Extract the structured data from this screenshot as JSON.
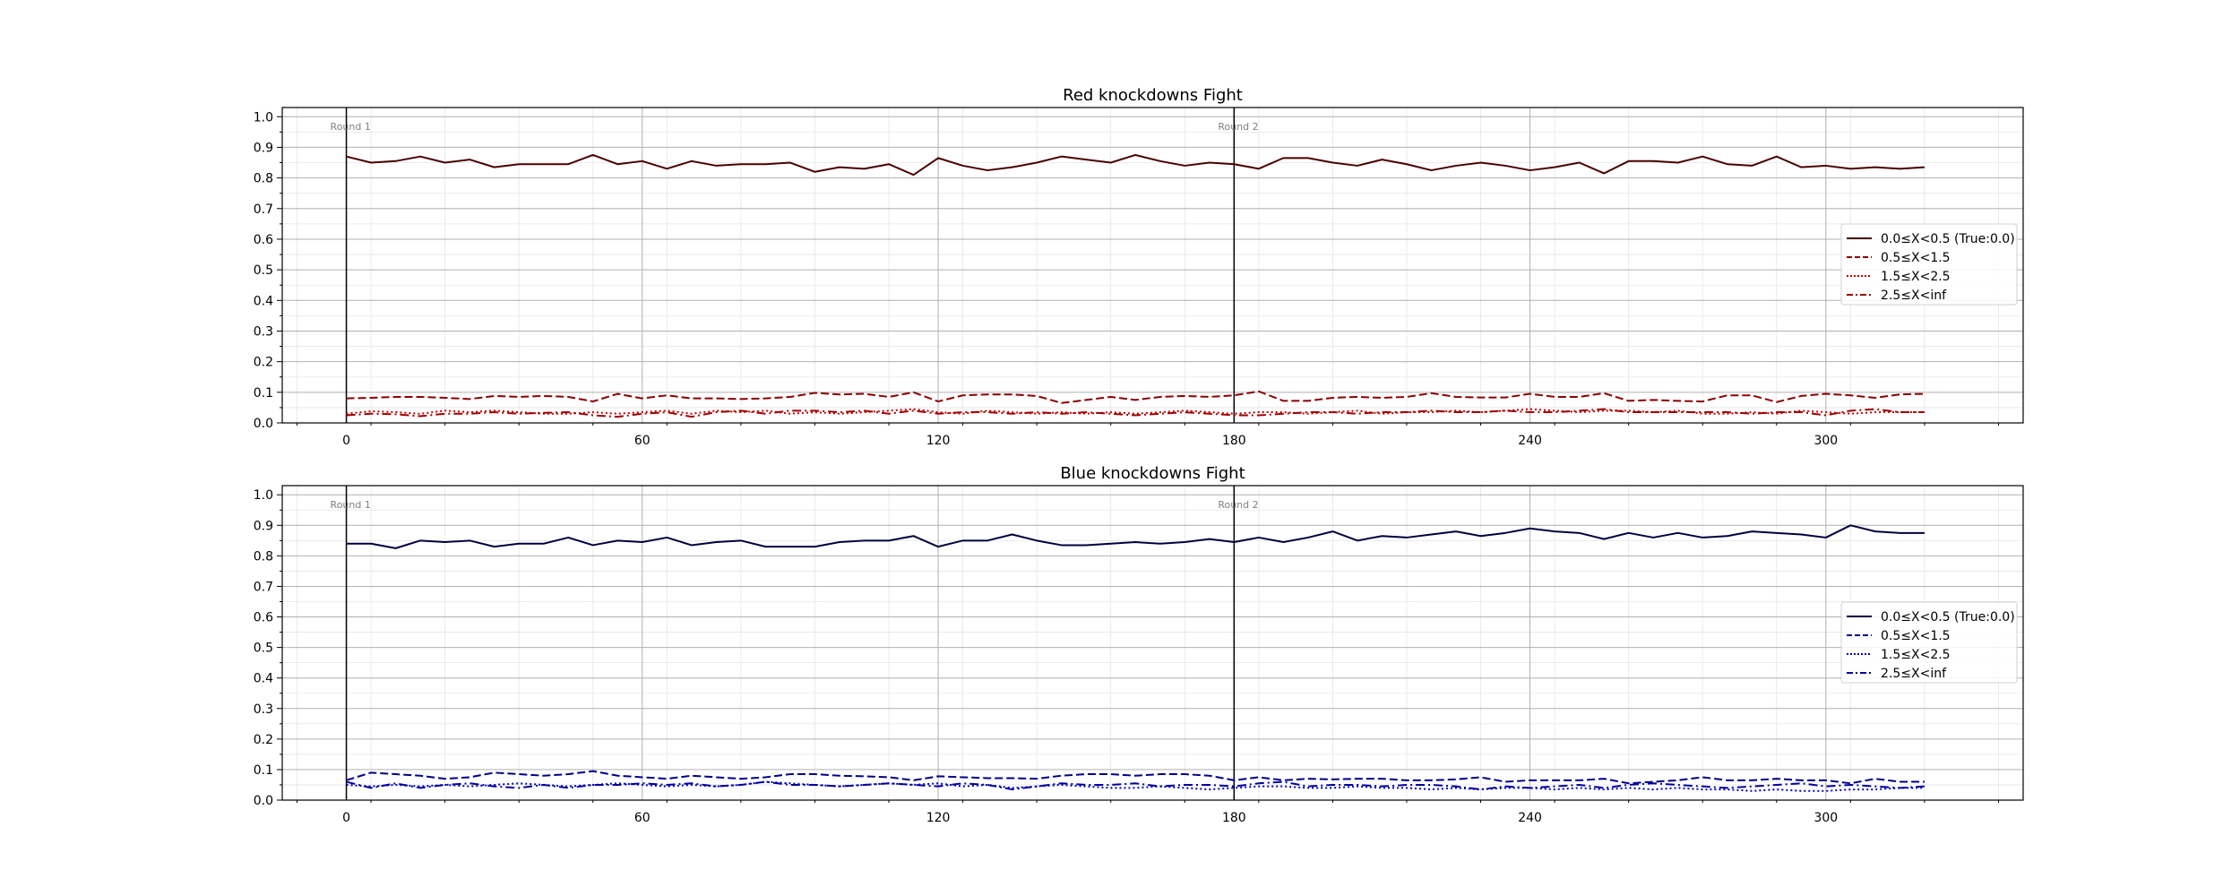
{
  "chart_data": [
    {
      "type": "line",
      "title": "Red knockdowns Fight",
      "xlabel": "",
      "ylabel": "",
      "xlim": [
        -13,
        340
      ],
      "ylim": [
        0.0,
        1.03
      ],
      "xticks": [
        0,
        60,
        120,
        180,
        240,
        300
      ],
      "yticks": [
        0.0,
        0.1,
        0.2,
        0.3,
        0.4,
        0.5,
        0.6,
        0.7,
        0.8,
        0.9,
        1.0
      ],
      "grid": "major and minor",
      "legend_position": "center-right",
      "round_markers": [
        {
          "x": 0,
          "label": "Round 1"
        },
        {
          "x": 180,
          "label": "Round 2"
        }
      ],
      "x": [
        0,
        5,
        10,
        15,
        20,
        25,
        30,
        35,
        40,
        45,
        50,
        55,
        60,
        65,
        70,
        75,
        80,
        85,
        90,
        95,
        100,
        105,
        110,
        115,
        120,
        125,
        130,
        135,
        140,
        145,
        150,
        155,
        160,
        165,
        170,
        175,
        180,
        185,
        190,
        195,
        200,
        205,
        210,
        215,
        220,
        225,
        230,
        235,
        240,
        245,
        250,
        255,
        260,
        265,
        270,
        275,
        280,
        285,
        290,
        295,
        300,
        305,
        310,
        315,
        320
      ],
      "series": [
        {
          "name": "0.0≤X<0.5 (True:0.0)",
          "color": "#4a0000",
          "dash": "solid",
          "values": [
            0.87,
            0.85,
            0.855,
            0.87,
            0.85,
            0.86,
            0.835,
            0.845,
            0.845,
            0.845,
            0.875,
            0.845,
            0.855,
            0.83,
            0.855,
            0.84,
            0.845,
            0.845,
            0.85,
            0.82,
            0.835,
            0.83,
            0.845,
            0.81,
            0.865,
            0.84,
            0.825,
            0.835,
            0.85,
            0.87,
            0.86,
            0.85,
            0.875,
            0.855,
            0.84,
            0.85,
            0.845,
            0.83,
            0.865,
            0.865,
            0.85,
            0.84,
            0.86,
            0.845,
            0.825,
            0.84,
            0.85,
            0.84,
            0.825,
            0.835,
            0.85,
            0.815,
            0.855,
            0.855,
            0.85,
            0.87,
            0.845,
            0.84,
            0.87,
            0.835,
            0.84,
            0.83,
            0.835,
            0.83,
            0.835
          ]
        },
        {
          "name": "0.5≤X<1.5",
          "color": "#8b0000",
          "dash": "dashed",
          "values": [
            0.08,
            0.082,
            0.085,
            0.085,
            0.082,
            0.078,
            0.088,
            0.085,
            0.088,
            0.085,
            0.07,
            0.095,
            0.08,
            0.09,
            0.08,
            0.08,
            0.078,
            0.08,
            0.085,
            0.098,
            0.093,
            0.095,
            0.085,
            0.1,
            0.07,
            0.09,
            0.093,
            0.093,
            0.088,
            0.065,
            0.075,
            0.085,
            0.075,
            0.085,
            0.088,
            0.085,
            0.09,
            0.103,
            0.072,
            0.072,
            0.082,
            0.085,
            0.082,
            0.085,
            0.097,
            0.085,
            0.083,
            0.083,
            0.095,
            0.085,
            0.085,
            0.097,
            0.072,
            0.075,
            0.072,
            0.07,
            0.09,
            0.09,
            0.068,
            0.088,
            0.095,
            0.09,
            0.082,
            0.093,
            0.095
          ]
        },
        {
          "name": "1.5≤X<2.5",
          "color": "#c00000",
          "dash": "dotted",
          "values": [
            0.03,
            0.038,
            0.035,
            0.03,
            0.04,
            0.035,
            0.04,
            0.035,
            0.03,
            0.03,
            0.035,
            0.03,
            0.035,
            0.04,
            0.03,
            0.04,
            0.035,
            0.04,
            0.03,
            0.035,
            0.03,
            0.035,
            0.04,
            0.045,
            0.035,
            0.03,
            0.04,
            0.035,
            0.03,
            0.035,
            0.03,
            0.035,
            0.03,
            0.035,
            0.04,
            0.035,
            0.03,
            0.035,
            0.035,
            0.03,
            0.035,
            0.04,
            0.03,
            0.035,
            0.035,
            0.04,
            0.035,
            0.04,
            0.045,
            0.04,
            0.035,
            0.04,
            0.04,
            0.035,
            0.04,
            0.03,
            0.03,
            0.035,
            0.03,
            0.04,
            0.035,
            0.03,
            0.035,
            0.035,
            0.035
          ]
        },
        {
          "name": "2.5≤X<inf",
          "color": "#a00000",
          "dash": "dashdot",
          "values": [
            0.025,
            0.03,
            0.028,
            0.022,
            0.03,
            0.03,
            0.035,
            0.03,
            0.033,
            0.035,
            0.025,
            0.02,
            0.03,
            0.035,
            0.02,
            0.035,
            0.04,
            0.03,
            0.04,
            0.04,
            0.035,
            0.04,
            0.03,
            0.04,
            0.03,
            0.035,
            0.035,
            0.03,
            0.035,
            0.03,
            0.035,
            0.03,
            0.025,
            0.03,
            0.035,
            0.03,
            0.025,
            0.025,
            0.03,
            0.035,
            0.035,
            0.03,
            0.035,
            0.035,
            0.04,
            0.035,
            0.035,
            0.04,
            0.035,
            0.035,
            0.04,
            0.045,
            0.035,
            0.035,
            0.035,
            0.035,
            0.035,
            0.03,
            0.035,
            0.035,
            0.025,
            0.04,
            0.045,
            0.035,
            0.035
          ]
        }
      ]
    },
    {
      "type": "line",
      "title": "Blue knockdowns Fight",
      "xlabel": "",
      "ylabel": "",
      "xlim": [
        -13,
        340
      ],
      "ylim": [
        0.0,
        1.03
      ],
      "xticks": [
        0,
        60,
        120,
        180,
        240,
        300
      ],
      "yticks": [
        0.0,
        0.1,
        0.2,
        0.3,
        0.4,
        0.5,
        0.6,
        0.7,
        0.8,
        0.9,
        1.0
      ],
      "grid": "major and minor",
      "legend_position": "center-right",
      "round_markers": [
        {
          "x": 0,
          "label": "Round 1"
        },
        {
          "x": 180,
          "label": "Round 2"
        }
      ],
      "x": [
        0,
        5,
        10,
        15,
        20,
        25,
        30,
        35,
        40,
        45,
        50,
        55,
        60,
        65,
        70,
        75,
        80,
        85,
        90,
        95,
        100,
        105,
        110,
        115,
        120,
        125,
        130,
        135,
        140,
        145,
        150,
        155,
        160,
        165,
        170,
        175,
        180,
        185,
        190,
        195,
        200,
        205,
        210,
        215,
        220,
        225,
        230,
        235,
        240,
        245,
        250,
        255,
        260,
        265,
        270,
        275,
        280,
        285,
        290,
        295,
        300,
        305,
        310,
        315,
        320
      ],
      "series": [
        {
          "name": "0.0≤X<0.5 (True:0.0)",
          "color": "#000040",
          "dash": "solid",
          "values": [
            0.84,
            0.84,
            0.825,
            0.85,
            0.845,
            0.85,
            0.83,
            0.84,
            0.84,
            0.86,
            0.835,
            0.85,
            0.845,
            0.86,
            0.835,
            0.845,
            0.85,
            0.83,
            0.83,
            0.83,
            0.845,
            0.85,
            0.85,
            0.865,
            0.83,
            0.85,
            0.85,
            0.87,
            0.85,
            0.835,
            0.835,
            0.84,
            0.845,
            0.84,
            0.845,
            0.855,
            0.845,
            0.86,
            0.845,
            0.86,
            0.88,
            0.85,
            0.865,
            0.86,
            0.87,
            0.88,
            0.865,
            0.875,
            0.89,
            0.88,
            0.875,
            0.855,
            0.875,
            0.86,
            0.875,
            0.86,
            0.865,
            0.88,
            0.875,
            0.87,
            0.86,
            0.9,
            0.88,
            0.875,
            0.875
          ]
        },
        {
          "name": "0.5≤X<1.5",
          "color": "#00008b",
          "dash": "dashed",
          "values": [
            0.065,
            0.09,
            0.085,
            0.08,
            0.07,
            0.075,
            0.09,
            0.085,
            0.08,
            0.085,
            0.095,
            0.08,
            0.075,
            0.07,
            0.08,
            0.075,
            0.07,
            0.075,
            0.085,
            0.085,
            0.08,
            0.078,
            0.075,
            0.065,
            0.078,
            0.075,
            0.072,
            0.072,
            0.07,
            0.08,
            0.085,
            0.085,
            0.08,
            0.085,
            0.085,
            0.08,
            0.065,
            0.075,
            0.065,
            0.07,
            0.068,
            0.07,
            0.07,
            0.065,
            0.065,
            0.068,
            0.075,
            0.06,
            0.065,
            0.065,
            0.065,
            0.07,
            0.055,
            0.06,
            0.065,
            0.075,
            0.065,
            0.065,
            0.07,
            0.065,
            0.065,
            0.055,
            0.07,
            0.06,
            0.06
          ]
        },
        {
          "name": "1.5≤X<2.5",
          "color": "#0000c0",
          "dash": "dotted",
          "values": [
            0.05,
            0.045,
            0.05,
            0.045,
            0.05,
            0.045,
            0.05,
            0.055,
            0.05,
            0.045,
            0.05,
            0.055,
            0.05,
            0.045,
            0.05,
            0.045,
            0.05,
            0.06,
            0.055,
            0.05,
            0.045,
            0.05,
            0.055,
            0.05,
            0.055,
            0.045,
            0.05,
            0.04,
            0.045,
            0.05,
            0.045,
            0.04,
            0.04,
            0.045,
            0.04,
            0.035,
            0.04,
            0.045,
            0.045,
            0.04,
            0.04,
            0.045,
            0.04,
            0.04,
            0.035,
            0.04,
            0.035,
            0.04,
            0.04,
            0.035,
            0.04,
            0.035,
            0.04,
            0.035,
            0.04,
            0.035,
            0.035,
            0.03,
            0.035,
            0.03,
            0.03,
            0.035,
            0.035,
            0.04,
            0.04
          ]
        },
        {
          "name": "2.5≤X<inf",
          "color": "#0000a0",
          "dash": "dashdot",
          "values": [
            0.06,
            0.04,
            0.055,
            0.04,
            0.05,
            0.055,
            0.045,
            0.04,
            0.05,
            0.04,
            0.05,
            0.05,
            0.055,
            0.05,
            0.055,
            0.045,
            0.05,
            0.06,
            0.05,
            0.05,
            0.045,
            0.05,
            0.055,
            0.05,
            0.045,
            0.055,
            0.05,
            0.035,
            0.045,
            0.055,
            0.05,
            0.05,
            0.055,
            0.045,
            0.05,
            0.05,
            0.045,
            0.055,
            0.06,
            0.045,
            0.05,
            0.05,
            0.045,
            0.05,
            0.05,
            0.045,
            0.035,
            0.045,
            0.04,
            0.045,
            0.05,
            0.04,
            0.05,
            0.055,
            0.05,
            0.045,
            0.04,
            0.045,
            0.05,
            0.055,
            0.045,
            0.05,
            0.045,
            0.04,
            0.045
          ]
        }
      ]
    }
  ]
}
